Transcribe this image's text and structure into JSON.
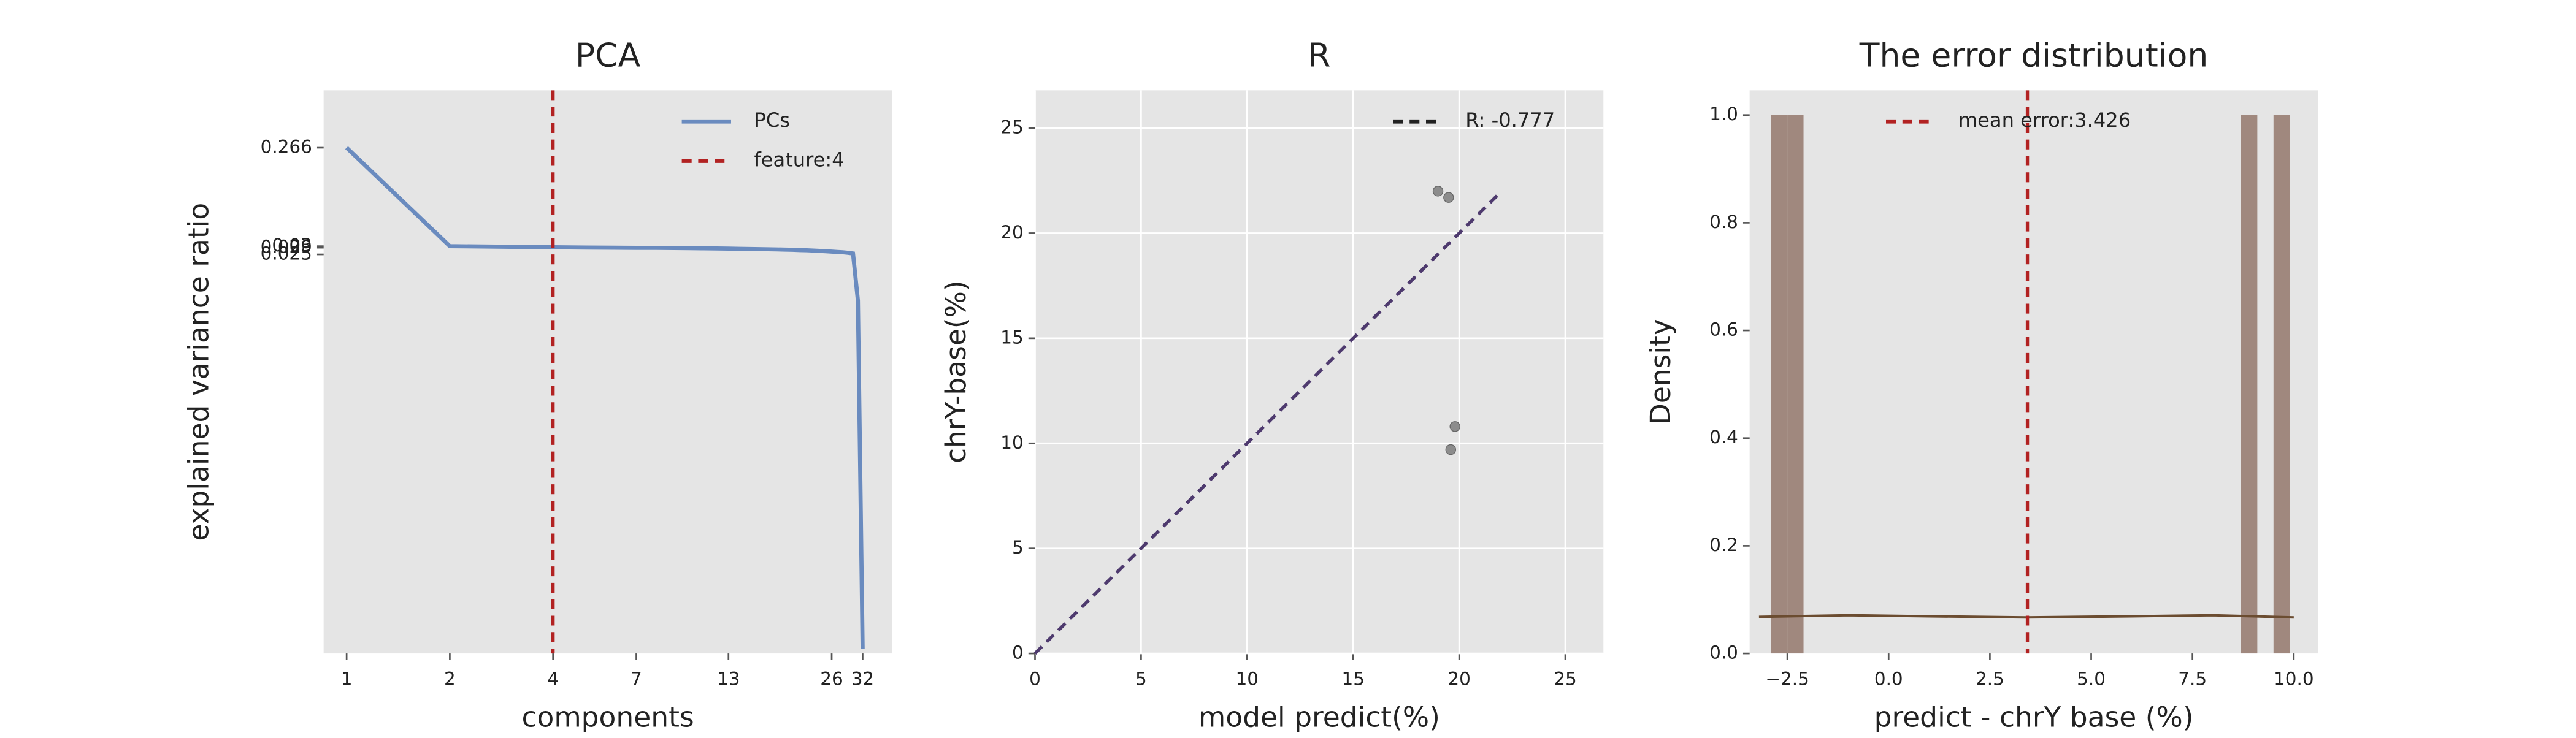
{
  "chart_data": [
    {
      "type": "line",
      "title": "PCA",
      "x_label": "components",
      "y_label": "explained variance ratio",
      "x": [
        1,
        2,
        3,
        4,
        5,
        6,
        7,
        8,
        9,
        10,
        11,
        12,
        13,
        14,
        15,
        16,
        17,
        18,
        19,
        20,
        21,
        22,
        23,
        24,
        25,
        26,
        27,
        28,
        29,
        30,
        31,
        32
      ],
      "series": [
        {
          "name": "PCs",
          "color": "#6a8bbf",
          "values": [
            0.266,
            0.03,
            0.0296,
            0.0293,
            0.0291,
            0.029,
            0.0289,
            0.0289,
            0.0288,
            0.0287,
            0.0286,
            0.0285,
            0.0284,
            0.0283,
            0.0282,
            0.0281,
            0.028,
            0.0279,
            0.0278,
            0.0277,
            0.0275,
            0.0274,
            0.0272,
            0.027,
            0.0268,
            0.0266,
            0.0264,
            0.0262,
            0.0259,
            0.0255,
            0.009,
            4e-06
          ]
        }
      ],
      "vline": {
        "name": "feature:4",
        "value": 4,
        "color": "#b22222"
      },
      "xscale": "log",
      "yscale": "log",
      "xlim": [
        0.857,
        39
      ],
      "ylim": [
        3.6e-06,
        0.95
      ],
      "xticks": [
        1,
        2,
        4,
        7,
        13,
        26,
        32
      ],
      "yticks": [
        0.266,
        0.03,
        0.029,
        0.025
      ],
      "grid": false,
      "legend": "upper right"
    },
    {
      "type": "scatter",
      "title": "R",
      "x_label": "model predict(%)",
      "y_label": "chrY-base(%)",
      "points": {
        "color": "#8c8c8c",
        "x": [
          19.0,
          19.5,
          19.8,
          19.6
        ],
        "values": [
          22.0,
          21.7,
          10.8,
          9.7
        ]
      },
      "series": [
        {
          "name": "R: -0.777",
          "color": "#4e3a6e",
          "legend_color": "#222222",
          "x": [
            0,
            22
          ],
          "values": [
            0,
            22
          ]
        }
      ],
      "xlim": [
        0,
        26.8
      ],
      "ylim": [
        0,
        26.8
      ],
      "xticks": [
        0,
        5,
        10,
        15,
        20,
        25
      ],
      "yticks": [
        0,
        5,
        10,
        15,
        20,
        25
      ],
      "grid": true,
      "legend": "upper right"
    },
    {
      "type": "histogram",
      "title": "The error distribution",
      "x_label": "predict - chrY base (%)",
      "y_label": "Density",
      "bins": [
        -2.9,
        -2.5,
        -2.1,
        -1.7,
        -1.3,
        -0.9,
        -0.5,
        -0.1,
        0.3,
        0.7,
        1.1,
        1.5,
        1.9,
        2.3,
        2.7,
        3.1,
        3.5,
        3.9,
        4.3,
        4.7,
        5.1,
        5.5,
        5.9,
        6.3,
        6.7,
        7.1,
        7.5,
        7.9,
        8.3,
        8.7,
        9.1,
        9.5,
        9.9
      ],
      "counts": [
        1,
        1,
        0,
        0,
        0,
        0,
        0,
        0,
        0,
        0,
        0,
        0,
        0,
        0,
        0,
        0,
        0,
        0,
        0,
        0,
        0,
        0,
        0,
        0,
        0,
        0,
        0,
        0,
        0,
        1,
        0,
        1
      ],
      "color": "#a0887e",
      "kde": {
        "color": "#6b4c30",
        "x": [
          -3.2,
          -1,
          1,
          3.4,
          6,
          8,
          10
        ],
        "values": [
          0.068,
          0.071,
          0.069,
          0.067,
          0.069,
          0.071,
          0.067
        ]
      },
      "vline": {
        "name": "mean error:3.426",
        "value": 3.426,
        "color": "#b22222"
      },
      "xlim": [
        -3.43,
        10.6
      ],
      "ylim": [
        0,
        1.046
      ],
      "xticks": [
        {
          "value": -2.5,
          "label": "−2.5"
        },
        {
          "value": 0,
          "label": "0.0"
        },
        {
          "value": 2.5,
          "label": "2.5"
        },
        {
          "value": 5,
          "label": "5.0"
        },
        {
          "value": 7.5,
          "label": "7.5"
        },
        {
          "value": 10,
          "label": "10.0"
        }
      ],
      "yticks": [
        {
          "value": 0,
          "label": "0.0"
        },
        {
          "value": 0.2,
          "label": "0.2"
        },
        {
          "value": 0.4,
          "label": "0.4"
        },
        {
          "value": 0.6,
          "label": "0.6"
        },
        {
          "value": 0.8,
          "label": "0.8"
        },
        {
          "value": 1.0,
          "label": "1.0"
        }
      ],
      "grid": false,
      "legend": "upper center"
    }
  ]
}
